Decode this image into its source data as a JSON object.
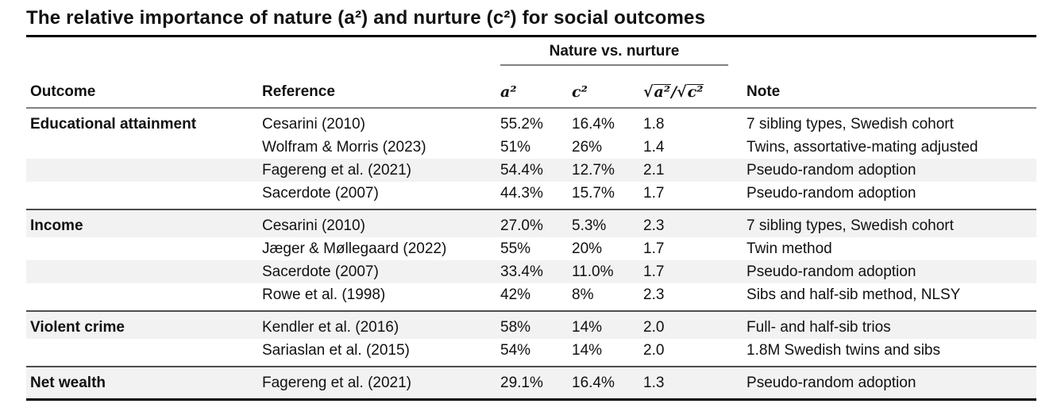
{
  "title": "The relative importance of nature (a²) and nurture (c²) for social outcomes",
  "table": {
    "group_header": "Nature vs. nurture",
    "columns": {
      "outcome": "Outcome",
      "reference": "Reference",
      "a2": "a²",
      "c2": "c²",
      "ratio": {
        "sqrt1": "√",
        "rad1": "a²",
        "slash": "/",
        "sqrt2": "√",
        "rad2": "c²"
      },
      "note": "Note"
    },
    "sections": [
      {
        "outcome": "Educational attainment",
        "rows": [
          {
            "reference": "Cesarini (2010)",
            "a2": "55.2%",
            "c2": "16.4%",
            "ratio": "1.8",
            "note": "7 sibling types, Swedish cohort"
          },
          {
            "reference": "Wolfram & Morris (2023)",
            "a2": "51%",
            "c2": "26%",
            "ratio": "1.4",
            "note": "Twins, assortative-mating adjusted"
          },
          {
            "reference": "Fagereng et al. (2021)",
            "a2": "54.4%",
            "c2": "12.7%",
            "ratio": "2.1",
            "note": "Pseudo-random adoption"
          },
          {
            "reference": "Sacerdote (2007)",
            "a2": "44.3%",
            "c2": "15.7%",
            "ratio": "1.7",
            "note": "Pseudo-random adoption"
          }
        ]
      },
      {
        "outcome": "Income",
        "rows": [
          {
            "reference": "Cesarini (2010)",
            "a2": "27.0%",
            "c2": "5.3%",
            "ratio": "2.3",
            "note": "7 sibling types, Swedish cohort"
          },
          {
            "reference": "Jæger & Møllegaard (2022)",
            "a2": "55%",
            "c2": "20%",
            "ratio": "1.7",
            "note": "Twin method"
          },
          {
            "reference": "Sacerdote (2007)",
            "a2": "33.4%",
            "c2": "11.0%",
            "ratio": "1.7",
            "note": "Pseudo-random adoption"
          },
          {
            "reference": "Rowe et al. (1998)",
            "a2": "42%",
            "c2": "8%",
            "ratio": "2.3",
            "note": "Sibs and half-sib method, NLSY"
          }
        ]
      },
      {
        "outcome": "Violent crime",
        "rows": [
          {
            "reference": "Kendler et al. (2016)",
            "a2": "58%",
            "c2": "14%",
            "ratio": "2.0",
            "note": "Full- and half-sib trios"
          },
          {
            "reference": "Sariaslan et al. (2015)",
            "a2": "54%",
            "c2": "14%",
            "ratio": "2.0",
            "note": "1.8M Swedish twins and sibs"
          }
        ]
      },
      {
        "outcome": "Net wealth",
        "rows": [
          {
            "reference": "Fagereng et al. (2021)",
            "a2": "29.1%",
            "c2": "16.4%",
            "ratio": "1.3",
            "note": "Pseudo-random adoption"
          }
        ]
      }
    ]
  },
  "colors": {
    "stripe": "#f2f2f2",
    "rule_heavy": "#000000",
    "rule_section": "#4d4d4d",
    "rule_header": "#808080"
  }
}
